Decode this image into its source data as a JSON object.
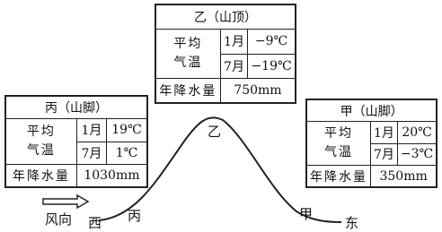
{
  "tables": [
    {
      "title": "乙（山顶）",
      "temp_label": [
        "平均",
        "气温"
      ],
      "rows": [
        [
          "1月",
          "−9℃"
        ],
        [
          "7月",
          "−19℃"
        ]
      ],
      "precip_label": "年降水量",
      "precip": "750mm"
    },
    {
      "title": "丙（山脚）",
      "temp_label": [
        "平均",
        "气温"
      ],
      "rows": [
        [
          "1月",
          "19℃"
        ],
        [
          "7月",
          "1℃"
        ]
      ],
      "precip_label": "年降水量",
      "precip": "1030mm"
    },
    {
      "title": "甲（山脚）",
      "temp_label": [
        "平均",
        "气温"
      ],
      "rows": [
        [
          "1月",
          "20℃"
        ],
        [
          "7月",
          "−3℃"
        ]
      ],
      "precip_label": "年降水量",
      "precip": "350mm"
    }
  ],
  "labels": {
    "peak": "乙",
    "left_foot": "丙",
    "right_foot": "甲",
    "west": "西",
    "east": "东",
    "wind": "风向"
  }
}
